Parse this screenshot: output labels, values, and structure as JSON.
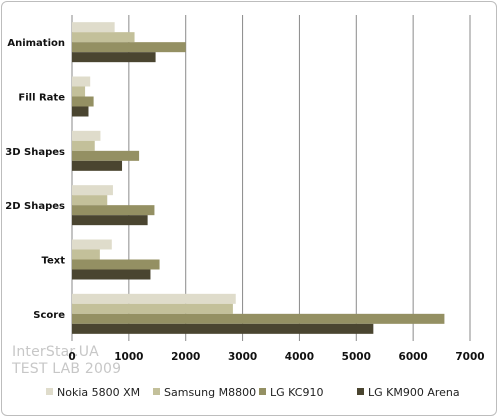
{
  "chart_data": {
    "type": "bar",
    "orientation": "horizontal",
    "title": "",
    "xlabel": "",
    "ylabel": "",
    "categories": [
      "Animation",
      "Fill Rate",
      "3D Shapes",
      "2D Shapes",
      "Text",
      "Score"
    ],
    "series": [
      {
        "name": "Nokia 5800 XM",
        "color": "#dfdccb",
        "values": [
          750,
          320,
          500,
          720,
          700,
          2880
        ]
      },
      {
        "name": "Samsung M8800",
        "color": "#c3c09a",
        "values": [
          1100,
          230,
          400,
          620,
          490,
          2830
        ]
      },
      {
        "name": "LG KC910",
        "color": "#949063",
        "values": [
          2000,
          380,
          1180,
          1450,
          1540,
          6550
        ]
      },
      {
        "name": "LG KM900 Arena",
        "color": "#4a4530",
        "values": [
          1470,
          290,
          880,
          1330,
          1380,
          5300
        ]
      }
    ],
    "xlim": [
      0,
      7000
    ],
    "xticks": [
      "0",
      "1000",
      "2000",
      "3000",
      "4000",
      "5000",
      "6000",
      "7000"
    ],
    "grid": true,
    "legend_position": "bottom"
  },
  "watermark": {
    "line1": "InterStar.UA",
    "line2": "TEST LAB 2009"
  }
}
